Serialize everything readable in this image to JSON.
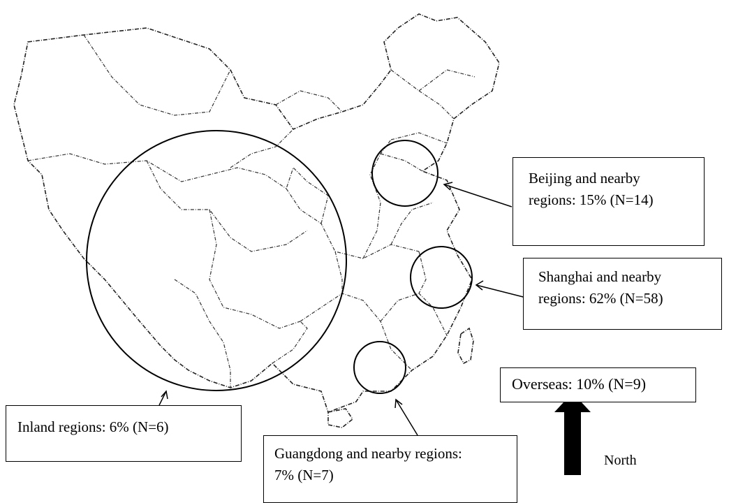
{
  "regions": {
    "beijing": {
      "line1": "Beijing and nearby",
      "line2": "regions: 15% (N=14)",
      "percent": 15,
      "count": 14
    },
    "shanghai": {
      "line1": "Shanghai and nearby",
      "line2": "regions: 62% (N=58)",
      "percent": 62,
      "count": 58
    },
    "overseas": {
      "line1": "Overseas: 10% (N=9)",
      "percent": 10,
      "count": 9
    },
    "inland": {
      "line1": "Inland regions: 6% (N=6)",
      "percent": 6,
      "count": 6
    },
    "guangdong": {
      "line1": "Guangdong and nearby regions:",
      "line2": "7% (N=7)",
      "percent": 7,
      "count": 7
    }
  },
  "compass": {
    "label": "North",
    "icon": "north-arrow-icon"
  },
  "colors": {
    "ink": "#000000",
    "border": "#333333",
    "background": "#ffffff"
  }
}
